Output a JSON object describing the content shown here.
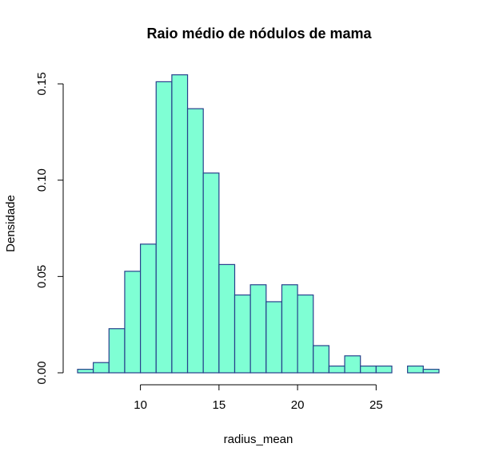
{
  "chart_data": {
    "type": "bar",
    "subtype": "histogram",
    "title": "Raio médio de nódulos de mama",
    "xlabel": "radius_mean",
    "ylabel": "Densidade",
    "xlim": [
      6,
      29
    ],
    "ylim": [
      0,
      0.155
    ],
    "bin_width": 1,
    "x_ticks": [
      10,
      15,
      20,
      25
    ],
    "y_ticks": [
      0.0,
      0.05,
      0.1,
      0.15
    ],
    "x_tick_labels": [
      "10",
      "15",
      "20",
      "25"
    ],
    "y_tick_labels": [
      "0.00",
      "0.05",
      "0.10",
      "0.15"
    ],
    "bins": [
      {
        "start": 6,
        "end": 7,
        "density": 0.0018
      },
      {
        "start": 7,
        "end": 8,
        "density": 0.0053
      },
      {
        "start": 8,
        "end": 9,
        "density": 0.0229
      },
      {
        "start": 9,
        "end": 10,
        "density": 0.0527
      },
      {
        "start": 10,
        "end": 11,
        "density": 0.0668
      },
      {
        "start": 11,
        "end": 12,
        "density": 0.1511
      },
      {
        "start": 12,
        "end": 13,
        "density": 0.1547
      },
      {
        "start": 13,
        "end": 14,
        "density": 0.1371
      },
      {
        "start": 14,
        "end": 15,
        "density": 0.1037
      },
      {
        "start": 15,
        "end": 16,
        "density": 0.0562
      },
      {
        "start": 16,
        "end": 17,
        "density": 0.0404
      },
      {
        "start": 17,
        "end": 18,
        "density": 0.0457
      },
      {
        "start": 18,
        "end": 19,
        "density": 0.0369
      },
      {
        "start": 19,
        "end": 20,
        "density": 0.0457
      },
      {
        "start": 20,
        "end": 21,
        "density": 0.0404
      },
      {
        "start": 21,
        "end": 22,
        "density": 0.0141
      },
      {
        "start": 22,
        "end": 23,
        "density": 0.0035
      },
      {
        "start": 23,
        "end": 24,
        "density": 0.0088
      },
      {
        "start": 24,
        "end": 25,
        "density": 0.0035
      },
      {
        "start": 25,
        "end": 26,
        "density": 0.0035
      },
      {
        "start": 26,
        "end": 27,
        "density": 0
      },
      {
        "start": 27,
        "end": 28,
        "density": 0.0035
      },
      {
        "start": 28,
        "end": 29,
        "density": 0.0018
      }
    ],
    "colors": {
      "bar_fill": "#7fffd4",
      "bar_border": "#27408b"
    },
    "grid": false,
    "legend": "none"
  }
}
